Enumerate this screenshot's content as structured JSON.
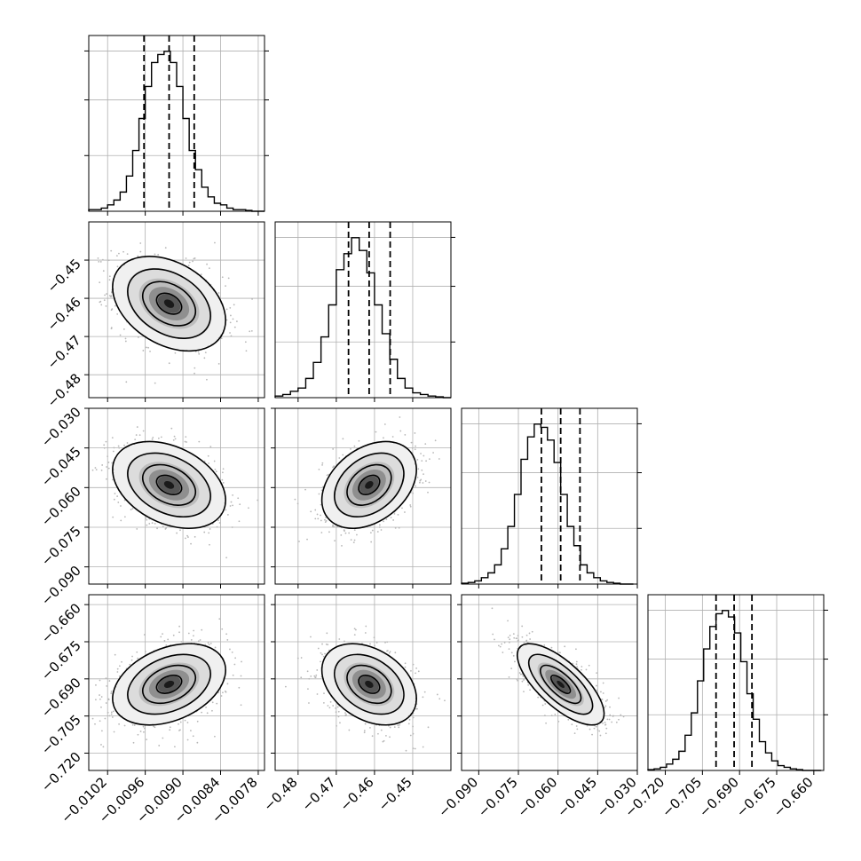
{
  "chart_data": {
    "type": "corner",
    "grid": true,
    "n_params": 4,
    "quantile_lines": "dashed",
    "params": [
      {
        "range": [
          -0.0105,
          -0.0077
        ],
        "ticks": [
          -0.0102,
          -0.0096,
          -0.009,
          -0.0084,
          -0.0078
        ],
        "tick_labels": [
          "−0.0102",
          "−0.0096",
          "−0.0090",
          "−0.0084",
          "−0.0078"
        ],
        "quantiles": [
          -0.00962,
          -0.00922,
          -0.00882
        ],
        "hist_bins": [
          -0.0105,
          -0.0104,
          -0.0103,
          -0.0102,
          -0.0101,
          -0.01,
          -0.0099,
          -0.0098,
          -0.0097,
          -0.0096,
          -0.0095,
          -0.0094,
          -0.0093,
          -0.0092,
          -0.0091,
          -0.009,
          -0.0089,
          -0.0088,
          -0.0087,
          -0.0086,
          -0.0085,
          -0.0084,
          -0.0083,
          -0.0082,
          -0.0081,
          -0.008,
          -0.0079,
          -0.0078,
          -0.0077
        ],
        "hist_counts": [
          0.01,
          0.01,
          0.02,
          0.04,
          0.07,
          0.12,
          0.22,
          0.38,
          0.58,
          0.78,
          0.93,
          0.98,
          1.0,
          0.93,
          0.78,
          0.58,
          0.38,
          0.26,
          0.15,
          0.09,
          0.05,
          0.04,
          0.02,
          0.01,
          0.01,
          0.005,
          0.0,
          0.0
        ]
      },
      {
        "range": [
          -0.486,
          -0.44
        ],
        "ticks": [
          -0.48,
          -0.47,
          -0.46,
          -0.45
        ],
        "tick_labels": [
          "−0.48",
          "−0.47",
          "−0.46",
          "−0.45"
        ],
        "quantiles": [
          -0.4668,
          -0.4614,
          -0.4559
        ],
        "hist_bins": [
          -0.486,
          -0.484,
          -0.482,
          -0.48,
          -0.478,
          -0.476,
          -0.474,
          -0.472,
          -0.47,
          -0.468,
          -0.466,
          -0.464,
          -0.462,
          -0.46,
          -0.458,
          -0.456,
          -0.454,
          -0.452,
          -0.45,
          -0.448,
          -0.446,
          -0.444,
          -0.442,
          -0.44
        ],
        "hist_counts": [
          0.01,
          0.02,
          0.04,
          0.06,
          0.12,
          0.22,
          0.38,
          0.58,
          0.8,
          0.9,
          1.0,
          0.92,
          0.78,
          0.58,
          0.4,
          0.24,
          0.12,
          0.06,
          0.03,
          0.02,
          0.01,
          0.005,
          0.0
        ]
      },
      {
        "range": [
          -0.0965,
          -0.03
        ],
        "ticks": [
          -0.09,
          -0.075,
          -0.06,
          -0.045,
          -0.03
        ],
        "tick_labels": [
          "−0.090",
          "−0.075",
          "−0.060",
          "−0.045",
          "−0.030"
        ],
        "quantiles": [
          -0.0663,
          -0.059,
          -0.0517
        ],
        "hist_bins": [
          -0.0965,
          -0.094,
          -0.0915,
          -0.089,
          -0.0865,
          -0.084,
          -0.0815,
          -0.079,
          -0.0765,
          -0.074,
          -0.0715,
          -0.069,
          -0.0665,
          -0.064,
          -0.0615,
          -0.059,
          -0.0565,
          -0.054,
          -0.0515,
          -0.049,
          -0.0465,
          -0.044,
          -0.0415,
          -0.039,
          -0.0365,
          -0.034,
          -0.0315
        ],
        "hist_counts": [
          0.005,
          0.01,
          0.02,
          0.04,
          0.07,
          0.12,
          0.22,
          0.36,
          0.56,
          0.78,
          0.92,
          1.0,
          0.98,
          0.9,
          0.76,
          0.56,
          0.36,
          0.24,
          0.12,
          0.07,
          0.04,
          0.02,
          0.01,
          0.005,
          0.0,
          0.0
        ]
      },
      {
        "range": [
          -0.727,
          -0.656
        ],
        "ticks": [
          -0.72,
          -0.705,
          -0.69,
          -0.675,
          -0.66
        ],
        "tick_labels": [
          "−0.720",
          "−0.705",
          "−0.690",
          "−0.675",
          "−0.660"
        ],
        "quantiles": [
          -0.6995,
          -0.6922,
          -0.685
        ],
        "hist_bins": [
          -0.727,
          -0.7245,
          -0.722,
          -0.7195,
          -0.717,
          -0.7145,
          -0.712,
          -0.7095,
          -0.707,
          -0.7045,
          -0.702,
          -0.6995,
          -0.697,
          -0.6945,
          -0.692,
          -0.6895,
          -0.687,
          -0.6845,
          -0.682,
          -0.6795,
          -0.677,
          -0.6745,
          -0.672,
          -0.6695,
          -0.667,
          -0.6645,
          -0.662,
          -0.6595,
          -0.657
        ],
        "hist_counts": [
          0.005,
          0.01,
          0.02,
          0.04,
          0.07,
          0.12,
          0.22,
          0.36,
          0.56,
          0.76,
          0.9,
          0.98,
          1.0,
          0.96,
          0.86,
          0.68,
          0.48,
          0.32,
          0.18,
          0.11,
          0.06,
          0.03,
          0.02,
          0.01,
          0.005,
          0.0,
          0.0,
          0.0
        ]
      }
    ],
    "pairs": [
      {
        "x": 0,
        "y": 1,
        "mean": [
          -0.00922,
          -0.4614
        ],
        "sigma": [
          0.0004,
          0.0055
        ],
        "rho": -0.35
      },
      {
        "x": 0,
        "y": 2,
        "mean": [
          -0.00922,
          -0.059
        ],
        "sigma": [
          0.0004,
          0.0073
        ],
        "rho": -0.35
      },
      {
        "x": 1,
        "y": 2,
        "mean": [
          -0.4614,
          -0.059
        ],
        "sigma": [
          0.0055,
          0.0073
        ],
        "rho": 0.35
      },
      {
        "x": 0,
        "y": 3,
        "mean": [
          -0.00922,
          -0.6922
        ],
        "sigma": [
          0.0004,
          0.0073
        ],
        "rho": 0.35
      },
      {
        "x": 1,
        "y": 3,
        "mean": [
          -0.4614,
          -0.6922
        ],
        "sigma": [
          0.0055,
          0.0073
        ],
        "rho": -0.35
      },
      {
        "x": 2,
        "y": 3,
        "mean": [
          -0.059,
          -0.6922
        ],
        "sigma": [
          0.0073,
          0.0073
        ],
        "rho": -0.72
      }
    ]
  }
}
